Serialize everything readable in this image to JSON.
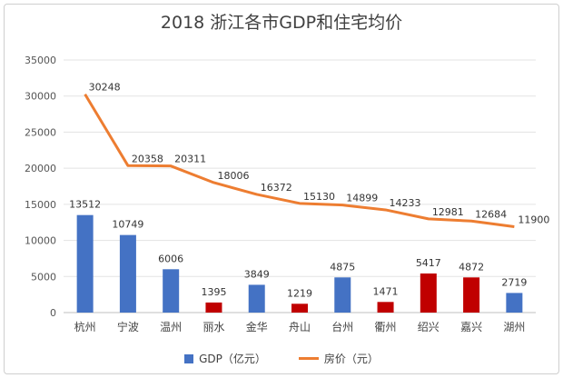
{
  "chart_data": {
    "type": "bar+line",
    "title": "2018 浙江各市GDP和住宅均价",
    "categories": [
      "杭州",
      "宁波",
      "温州",
      "丽水",
      "金华",
      "舟山",
      "台州",
      "衢州",
      "绍兴",
      "嘉兴",
      "湖州"
    ],
    "series": [
      {
        "name": "GDP（亿元）",
        "type": "bar",
        "values": [
          13512,
          10749,
          6006,
          1395,
          3849,
          1219,
          4875,
          1471,
          5417,
          4872,
          2719
        ],
        "colors": [
          "#4472c4",
          "#4472c4",
          "#4472c4",
          "#c00000",
          "#4472c4",
          "#c00000",
          "#4472c4",
          "#c00000",
          "#c00000",
          "#c00000",
          "#4472c4"
        ],
        "labels": [
          "13512",
          "10749",
          "6006",
          "1395",
          "3849",
          "1219",
          "4875",
          "1471",
          "5417",
          "4872",
          "2719"
        ]
      },
      {
        "name": "房价（元）",
        "type": "line",
        "color": "#ed7d31",
        "values": [
          30248,
          20358,
          20311,
          18006,
          16372,
          15130,
          14899,
          14233,
          12981,
          12684,
          11900
        ],
        "labels": [
          "30248",
          "20358",
          "20311",
          "18006",
          "16372",
          "15130",
          "14899",
          "14233",
          "12981",
          "12684",
          "11900"
        ]
      }
    ],
    "ylim": [
      0,
      35000
    ],
    "yticks": [
      "0",
      "5000",
      "10000",
      "15000",
      "20000",
      "25000",
      "30000",
      "35000"
    ],
    "grid": true,
    "legend_position": "bottom",
    "legend_bar_color": "#4472c4"
  }
}
